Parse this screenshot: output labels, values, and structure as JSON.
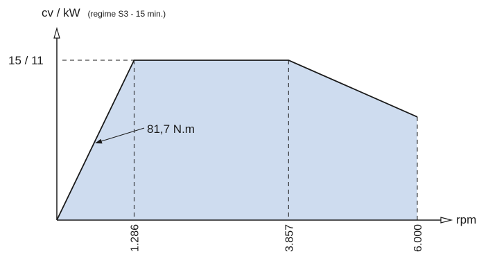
{
  "chart_data": {
    "type": "area",
    "ylabel": "cv / kW",
    "ylabel_note": "(regime S3 - 15 min.)",
    "xlabel": "rpm",
    "y_tick_label": "15 / 11",
    "x_tick_labels": [
      "1.286",
      "3.857",
      "6.000"
    ],
    "x": [
      0,
      1286,
      3857,
      6000
    ],
    "y": [
      0,
      11,
      11,
      7.1
    ],
    "xlim": [
      0,
      6000
    ],
    "ylim": [
      0,
      11
    ],
    "annotation": "81,7 N.m",
    "grid": false,
    "fill_color": "#cedcef",
    "line_color": "#1a1a1a"
  }
}
